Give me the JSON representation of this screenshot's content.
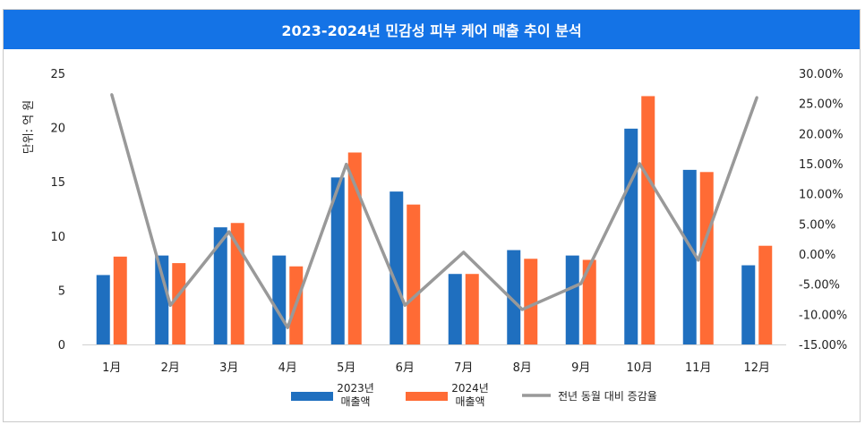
{
  "chart_data": {
    "type": "bar",
    "title": "2023-2024년 민감성 피부 케어 매출 추이 분석",
    "ylabel": "단위: 억 원",
    "y2label": "",
    "categories": [
      "1月",
      "2月",
      "3月",
      "4月",
      "5月",
      "6月",
      "7月",
      "8月",
      "9月",
      "10月",
      "11月",
      "12月"
    ],
    "ylim": [
      0,
      25
    ],
    "y2lim": [
      -15,
      30
    ],
    "yticks": [
      "0",
      "5",
      "10",
      "15",
      "20",
      "25"
    ],
    "y2ticks": [
      "-15.00%",
      "-10.00%",
      "-5.00%",
      "0.00%",
      "5.00%",
      "10.00%",
      "15.00%",
      "20.00%",
      "25.00%",
      "30.00%"
    ],
    "series": [
      {
        "name": "2023년 매출액",
        "name_lines": [
          "2023년",
          "매출액"
        ],
        "kind": "bar",
        "axis": "left",
        "color": "#1f6fbf",
        "values": [
          6.4,
          8.2,
          10.8,
          8.2,
          15.4,
          14.1,
          6.5,
          8.7,
          8.2,
          19.9,
          16.1,
          7.3
        ]
      },
      {
        "name": "2024년 매출액",
        "name_lines": [
          "2024년",
          "매출액"
        ],
        "kind": "bar",
        "axis": "left",
        "color": "#ff6b35",
        "values": [
          8.1,
          7.5,
          11.2,
          7.2,
          17.7,
          12.9,
          6.5,
          7.9,
          7.8,
          22.9,
          15.9,
          9.1
        ]
      },
      {
        "name": "전년 동월 대비 증감율",
        "name_lines": [
          "전년 동월 대비 증감율"
        ],
        "kind": "line",
        "axis": "right",
        "color": "#999999",
        "values": [
          26.5,
          -8.5,
          3.7,
          -12.2,
          14.9,
          -8.5,
          0.3,
          -9.2,
          -4.9,
          15.0,
          -1.0,
          26.0
        ]
      }
    ],
    "grid": false,
    "legend_position": "bottom"
  }
}
